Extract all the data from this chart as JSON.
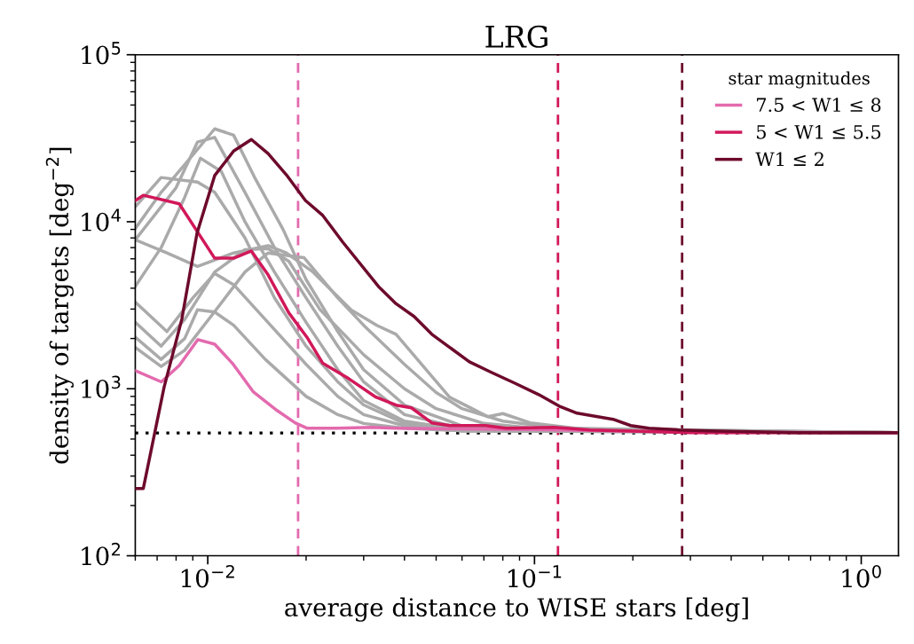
{
  "chart_data": {
    "type": "line",
    "title": "LRG",
    "xlabel": "average distance to WISE stars [deg]",
    "ylabel": "density of targets [deg$^{−2}$]",
    "log": "xy",
    "grid": false,
    "legend": "top right",
    "legend_title": "star magnitudes",
    "xlim": [
      0.006,
      1.3
    ],
    "ylim": [
      100,
      100000
    ],
    "xticks": [
      {
        "value": 0.01,
        "label": "10$^{−2}$"
      },
      {
        "value": 0.1,
        "label": "10$^{−1}$"
      },
      {
        "value": 1,
        "label": "10$^{0}$"
      }
    ],
    "yticks": [
      {
        "value": 100,
        "label": "10$^{2}$"
      },
      {
        "value": 1000,
        "label": "10$^{3}$"
      },
      {
        "value": 10000,
        "label": "10$^{4}$"
      },
      {
        "value": 100000,
        "label": "10$^{5}$"
      }
    ],
    "series": [
      {
        "color": "#aaaaaa",
        "x": [
          0.006,
          0.0072,
          0.0093,
          0.0105,
          0.013,
          0.016,
          0.02,
          0.025,
          0.03,
          0.04,
          0.06,
          1.28
        ],
        "values": [
          12300,
          18400,
          17300,
          15000,
          8000,
          3500,
          1800,
          1100,
          800,
          620,
          560,
          546
        ]
      },
      {
        "color": "#aaaaaa",
        "x": [
          0.006,
          0.0072,
          0.0085,
          0.0105,
          0.012,
          0.014,
          0.017,
          0.02,
          0.025,
          0.03,
          0.04,
          0.06,
          0.1,
          1.28
        ],
        "values": [
          9100,
          15000,
          22000,
          36000,
          33000,
          18000,
          9000,
          4500,
          2200,
          1300,
          800,
          600,
          560,
          546
        ]
      },
      {
        "color": "#aaaaaa",
        "x": [
          0.006,
          0.008,
          0.0093,
          0.0105,
          0.013,
          0.016,
          0.02,
          0.025,
          0.03,
          0.04,
          0.06,
          1.28
        ],
        "values": [
          7800,
          16000,
          30000,
          32000,
          15000,
          7000,
          3500,
          1800,
          1100,
          700,
          580,
          546
        ]
      },
      {
        "color": "#aaaaaa",
        "x": [
          0.006,
          0.0072,
          0.0085,
          0.0095,
          0.011,
          0.013,
          0.016,
          0.02,
          0.025,
          0.03,
          0.04,
          0.06,
          1.28
        ],
        "values": [
          4100,
          7000,
          14000,
          24000,
          20000,
          10000,
          5000,
          2500,
          1300,
          850,
          640,
          570,
          546
        ]
      },
      {
        "color": "#aaaaaa",
        "x": [
          0.006,
          0.0075,
          0.0093,
          0.0105,
          0.012,
          0.0153,
          0.0174,
          0.021,
          0.0275,
          0.033,
          0.0377,
          0.055,
          0.0636,
          0.072,
          0.08,
          0.097,
          0.15,
          1.28
        ],
        "values": [
          7800,
          6500,
          5400,
          5900,
          6500,
          7200,
          6500,
          5000,
          2960,
          2390,
          2120,
          890,
          770,
          680,
          710,
          625,
          565,
          546
        ]
      },
      {
        "color": "#aaaaaa",
        "x": [
          0.006,
          0.0072,
          0.0085,
          0.0105,
          0.013,
          0.0153,
          0.0197,
          0.025,
          0.03,
          0.04,
          0.05,
          0.06,
          0.08,
          0.12,
          1.28
        ],
        "values": [
          1770,
          1360,
          1700,
          2900,
          5000,
          6500,
          6100,
          3500,
          2400,
          1400,
          950,
          760,
          640,
          580,
          546
        ]
      },
      {
        "color": "#aaaaaa",
        "x": [
          0.006,
          0.0072,
          0.0085,
          0.0105,
          0.013,
          0.0153,
          0.0177,
          0.022,
          0.03,
          0.04,
          0.05,
          0.07,
          0.1,
          1.28
        ],
        "values": [
          2500,
          1800,
          2600,
          5000,
          6800,
          6900,
          5800,
          3000,
          1600,
          1000,
          760,
          620,
          580,
          546
        ]
      },
      {
        "color": "#aaaaaa",
        "x": [
          0.006,
          0.0072,
          0.0085,
          0.0093,
          0.0105,
          0.012,
          0.015,
          0.02,
          0.025,
          0.03,
          0.04,
          0.06,
          1.28
        ],
        "values": [
          2040,
          1500,
          2000,
          2970,
          2880,
          2400,
          1500,
          900,
          700,
          620,
          580,
          560,
          546
        ]
      },
      {
        "color": "#aaaaaa",
        "x": [
          0.006,
          0.0075,
          0.009,
          0.0105,
          0.012,
          0.015,
          0.02,
          0.025,
          0.03,
          0.04,
          0.06,
          1.28
        ],
        "values": [
          3300,
          2200,
          3500,
          4900,
          4200,
          2600,
          1400,
          900,
          700,
          600,
          560,
          546
        ]
      },
      {
        "name": "7.5 < W1 ≤ 8",
        "color": "#e36aae",
        "x": [
          0.006,
          0.00721,
          0.00818,
          0.00933,
          0.0105,
          0.0119,
          0.0138,
          0.0163,
          0.0185,
          0.0201,
          0.0247,
          0.0318,
          0.0377,
          0.06,
          0.1,
          0.3,
          1.28
        ],
        "values": [
          1285,
          1100,
          1380,
          1970,
          1850,
          1420,
          956,
          741,
          625,
          581,
          581,
          587,
          581,
          575,
          570,
          550,
          546
        ]
      },
      {
        "name": "5 < W1 ≤ 5.5",
        "color": "#d1185a",
        "x": [
          0.006,
          0.00635,
          0.00818,
          0.0105,
          0.012,
          0.0136,
          0.0153,
          0.0177,
          0.0201,
          0.0225,
          0.027,
          0.0327,
          0.0377,
          0.042,
          0.0485,
          0.055,
          0.0708,
          0.0818,
          0.115,
          0.148,
          0.3,
          1.28
        ],
        "values": [
          13400,
          14400,
          12800,
          6050,
          6050,
          6680,
          4810,
          2850,
          2040,
          1420,
          1150,
          891,
          798,
          769,
          625,
          602,
          602,
          581,
          587,
          567,
          546,
          546
        ]
      },
      {
        "name": "W1 ≤ 2",
        "color": "#6d0a2c",
        "x": [
          0.006,
          0.00635,
          0.00735,
          0.00833,
          0.00927,
          0.0105,
          0.012,
          0.0136,
          0.0153,
          0.0174,
          0.0199,
          0.0225,
          0.0259,
          0.0333,
          0.0377,
          0.0428,
          0.0485,
          0.055,
          0.0632,
          0.074,
          0.0871,
          0.103,
          0.119,
          0.135,
          0.174,
          0.197,
          0.224,
          0.277,
          0.341,
          0.64,
          1.28
        ],
        "values": [
          253,
          253,
          1020,
          2610,
          8530,
          18900,
          26500,
          31100,
          25600,
          19100,
          13400,
          10900,
          7550,
          4100,
          3230,
          2710,
          2120,
          1770,
          1450,
          1250,
          1080,
          923,
          787,
          714,
          656,
          602,
          581,
          567,
          560,
          546,
          546
        ]
      }
    ],
    "ref_lines": [
      {
        "axis": "x",
        "value": 0.0189,
        "color": "#e36aae",
        "line_style": "dashed"
      },
      {
        "axis": "x",
        "value": 0.118,
        "color": "#d1185a",
        "line_style": "dashed"
      },
      {
        "axis": "x",
        "value": 0.283,
        "color": "#6d0a2c",
        "line_style": "dashed"
      },
      {
        "axis": "y",
        "value": 543,
        "color": "#000000",
        "line_style": "dotted"
      }
    ]
  }
}
